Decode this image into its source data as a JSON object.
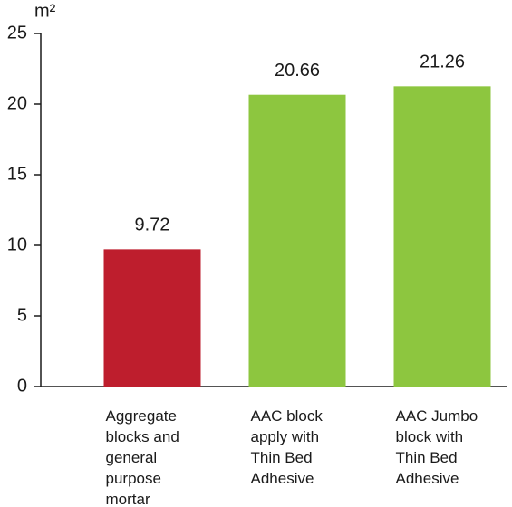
{
  "chart_data": {
    "type": "bar",
    "y_label": "m²",
    "categories": [
      "Aggregate blocks and general purpose mortar",
      "AAC block apply with Thin Bed Adhesive",
      "AAC Jumbo block with Thin Bed Adhesive"
    ],
    "values": [
      9.72,
      20.66,
      21.26
    ],
    "colors": [
      "#be1e2d",
      "#8dc63f",
      "#8dc63f"
    ],
    "ylim": [
      0,
      25
    ],
    "yticks": [
      0,
      5,
      10,
      15,
      20,
      25
    ]
  }
}
